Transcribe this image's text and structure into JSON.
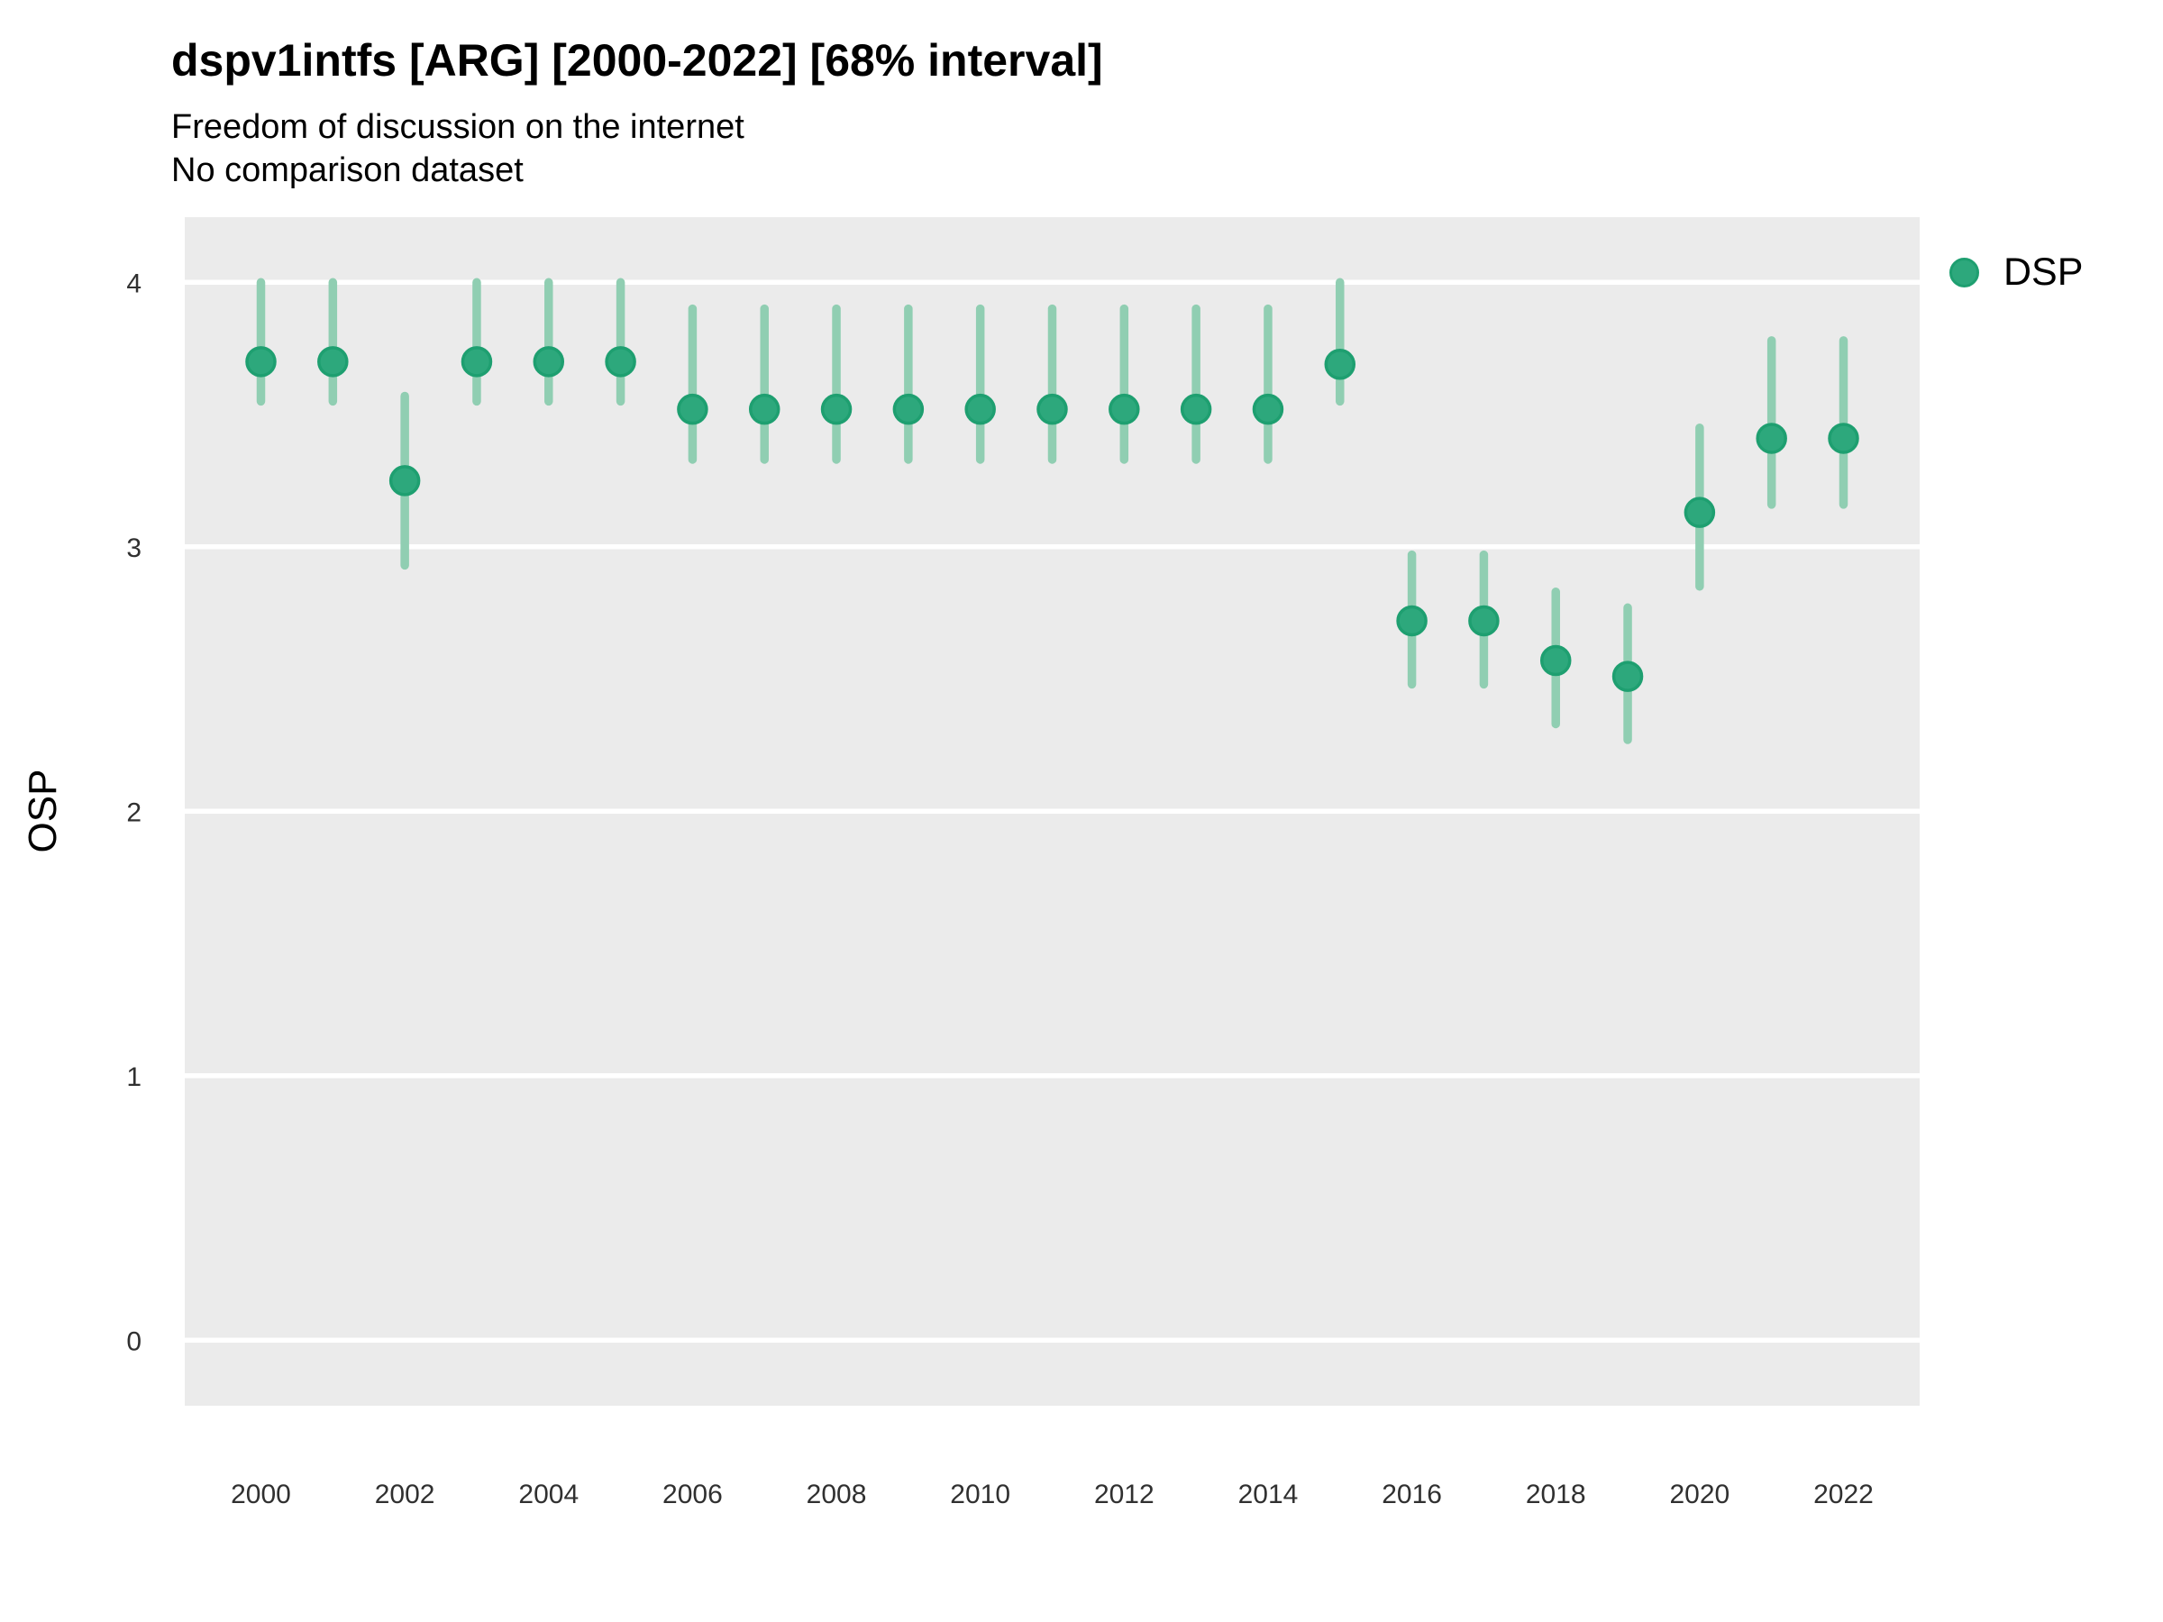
{
  "title": "dspv1intfs [ARG] [2000-2022] [68% interval]",
  "subtitle": "Freedom of discussion on the internet",
  "subtitle2": "No comparison dataset",
  "legend": {
    "label": "DSP"
  },
  "axes": {
    "y_title": "OSP",
    "y_ticks": [
      4,
      3,
      2,
      1,
      0
    ],
    "x_ticks": [
      2000,
      2002,
      2004,
      2006,
      2008,
      2010,
      2012,
      2014,
      2016,
      2018,
      2020,
      2022
    ]
  },
  "colors": {
    "marker_fill": "#2DA87C",
    "marker_stroke": "#1E9F70",
    "interval_bar": "#90CEB2",
    "panel_background": "#EBEBEB",
    "gridline": "#FFFFFF",
    "title_text": "#000000",
    "tick_text": "#303030"
  },
  "chart_data": {
    "type": "scatter",
    "title": "dspv1intfs [ARG] [2000-2022] [68% interval]",
    "subtitle": "Freedom of discussion on the internet",
    "note": "No comparison dataset",
    "xlabel": "",
    "ylabel": "OSP",
    "interval": "68%",
    "legend_position": "right",
    "grid": "horizontal white major gridlines on gray panel",
    "xlim": [
      2000,
      2022
    ],
    "ylim": [
      0,
      4
    ],
    "x": [
      2000,
      2001,
      2002,
      2003,
      2004,
      2005,
      2006,
      2007,
      2008,
      2009,
      2010,
      2011,
      2012,
      2013,
      2014,
      2015,
      2016,
      2017,
      2018,
      2019,
      2020,
      2021,
      2022
    ],
    "series": [
      {
        "name": "DSP",
        "estimates": [
          3.7,
          3.7,
          3.25,
          3.7,
          3.7,
          3.7,
          3.52,
          3.52,
          3.52,
          3.52,
          3.52,
          3.52,
          3.52,
          3.52,
          3.52,
          3.69,
          2.72,
          2.72,
          2.57,
          2.51,
          3.13,
          3.41,
          3.41
        ],
        "lower_68": [
          3.55,
          3.55,
          2.93,
          3.55,
          3.55,
          3.55,
          3.33,
          3.33,
          3.33,
          3.33,
          3.33,
          3.33,
          3.33,
          3.33,
          3.33,
          3.55,
          2.48,
          2.48,
          2.33,
          2.27,
          2.85,
          3.16,
          3.16
        ],
        "upper_68": [
          4.0,
          4.0,
          3.57,
          4.0,
          4.0,
          4.0,
          3.9,
          3.9,
          3.9,
          3.9,
          3.9,
          3.9,
          3.9,
          3.9,
          3.9,
          4.0,
          2.97,
          2.97,
          2.83,
          2.77,
          3.45,
          3.78,
          3.78
        ]
      }
    ]
  }
}
